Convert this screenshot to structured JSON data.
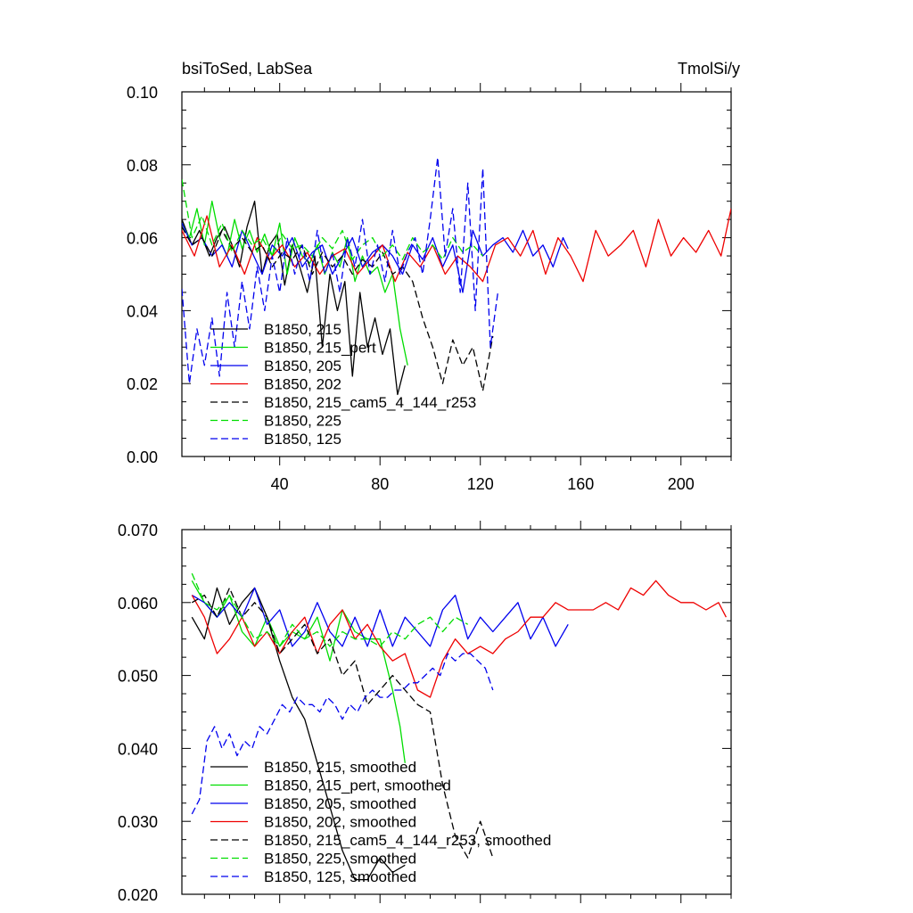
{
  "chart_data": [
    {
      "type": "line",
      "title_left": "bsiToSed, LabSea",
      "title_right": "TmolSi/y",
      "xlim": [
        1,
        220
      ],
      "ylim": [
        0.0,
        0.1
      ],
      "xticks": [
        40,
        80,
        120,
        160,
        200
      ],
      "xtick_labels": [
        "40",
        "80",
        "120",
        "160",
        "200"
      ],
      "yticks": [
        0.0,
        0.02,
        0.04,
        0.06,
        0.08,
        0.1
      ],
      "ytick_labels": [
        "0.00",
        "0.02",
        "0.04",
        "0.06",
        "0.08",
        "0.10"
      ],
      "series": [
        {
          "name": "B1850, 215",
          "color": "#000000",
          "dash": "solid",
          "x": [
            1,
            5,
            8,
            12,
            15,
            18,
            21,
            24,
            27,
            30,
            33,
            36,
            39,
            42,
            45,
            48,
            51,
            54,
            57,
            60,
            63,
            66,
            69,
            72,
            75,
            78,
            81,
            84,
            87,
            90
          ],
          "values": [
            0.065,
            0.058,
            0.062,
            0.055,
            0.06,
            0.063,
            0.058,
            0.052,
            0.063,
            0.07,
            0.05,
            0.058,
            0.061,
            0.047,
            0.058,
            0.052,
            0.045,
            0.055,
            0.03,
            0.05,
            0.04,
            0.048,
            0.022,
            0.045,
            0.03,
            0.038,
            0.028,
            0.035,
            0.017,
            0.025
          ]
        },
        {
          "name": "B1850, 215_pert",
          "color": "#00dd00",
          "dash": "solid",
          "x": [
            1,
            4,
            7,
            10,
            13,
            16,
            19,
            22,
            25,
            28,
            31,
            34,
            37,
            40,
            43,
            46,
            49,
            52,
            55,
            58,
            61,
            64,
            67,
            70,
            73,
            76,
            79,
            82,
            85,
            88,
            91
          ],
          "values": [
            0.064,
            0.06,
            0.068,
            0.058,
            0.07,
            0.06,
            0.055,
            0.065,
            0.057,
            0.062,
            0.056,
            0.061,
            0.055,
            0.064,
            0.05,
            0.06,
            0.055,
            0.053,
            0.058,
            0.05,
            0.056,
            0.052,
            0.06,
            0.048,
            0.055,
            0.05,
            0.052,
            0.045,
            0.05,
            0.035,
            0.025
          ]
        },
        {
          "name": "B1850, 205",
          "color": "#0000ee",
          "dash": "solid",
          "x": [
            1,
            5,
            9,
            13,
            17,
            21,
            25,
            29,
            33,
            37,
            41,
            45,
            49,
            53,
            57,
            61,
            65,
            69,
            73,
            77,
            81,
            85,
            89,
            93,
            97,
            101,
            105,
            109,
            113,
            117,
            121,
            125,
            129,
            133,
            137,
            141,
            145,
            149,
            153,
            155
          ],
          "values": [
            0.064,
            0.058,
            0.06,
            0.055,
            0.058,
            0.052,
            0.062,
            0.056,
            0.05,
            0.058,
            0.055,
            0.06,
            0.052,
            0.056,
            0.058,
            0.05,
            0.055,
            0.06,
            0.052,
            0.056,
            0.058,
            0.055,
            0.05,
            0.058,
            0.054,
            0.06,
            0.052,
            0.058,
            0.045,
            0.062,
            0.055,
            0.058,
            0.06,
            0.056,
            0.062,
            0.055,
            0.058,
            0.052,
            0.06,
            0.057
          ]
        },
        {
          "name": "B1850, 202",
          "color": "#ee0000",
          "dash": "solid",
          "x": [
            1,
            6,
            11,
            16,
            21,
            26,
            31,
            36,
            41,
            46,
            51,
            56,
            61,
            66,
            71,
            76,
            81,
            86,
            91,
            96,
            101,
            106,
            111,
            116,
            121,
            126,
            131,
            136,
            141,
            146,
            151,
            156,
            161,
            166,
            171,
            176,
            181,
            186,
            191,
            196,
            201,
            206,
            211,
            216,
            220
          ],
          "values": [
            0.062,
            0.055,
            0.066,
            0.052,
            0.058,
            0.05,
            0.06,
            0.054,
            0.058,
            0.052,
            0.056,
            0.05,
            0.055,
            0.057,
            0.05,
            0.054,
            0.058,
            0.048,
            0.056,
            0.052,
            0.058,
            0.05,
            0.055,
            0.052,
            0.048,
            0.058,
            0.06,
            0.055,
            0.062,
            0.05,
            0.06,
            0.055,
            0.048,
            0.062,
            0.055,
            0.058,
            0.062,
            0.052,
            0.065,
            0.055,
            0.06,
            0.056,
            0.062,
            0.055,
            0.068
          ]
        },
        {
          "name": "B1850, 215_cam5_4_144_r253",
          "color": "#000000",
          "dash": "dashed",
          "x": [
            1,
            5,
            9,
            13,
            17,
            21,
            25,
            29,
            33,
            37,
            41,
            45,
            49,
            53,
            57,
            61,
            65,
            69,
            73,
            77,
            81,
            85,
            89,
            93,
            97,
            101,
            105,
            109,
            113,
            117,
            121,
            125
          ],
          "values": [
            0.063,
            0.058,
            0.06,
            0.055,
            0.062,
            0.057,
            0.06,
            0.056,
            0.058,
            0.052,
            0.056,
            0.054,
            0.058,
            0.05,
            0.056,
            0.052,
            0.055,
            0.05,
            0.054,
            0.052,
            0.056,
            0.05,
            0.052,
            0.048,
            0.038,
            0.03,
            0.02,
            0.032,
            0.025,
            0.03,
            0.018,
            0.033
          ]
        },
        {
          "name": "B1850, 225",
          "color": "#00dd00",
          "dash": "dashed",
          "x": [
            1,
            5,
            9,
            13,
            17,
            21,
            25,
            29,
            33,
            37,
            41,
            45,
            49,
            53,
            57,
            61,
            65,
            69,
            73,
            77,
            81,
            85,
            89,
            93,
            97,
            101,
            105,
            109,
            113,
            117,
            121
          ],
          "values": [
            0.076,
            0.06,
            0.066,
            0.058,
            0.064,
            0.056,
            0.062,
            0.058,
            0.06,
            0.055,
            0.061,
            0.057,
            0.058,
            0.055,
            0.06,
            0.057,
            0.062,
            0.054,
            0.058,
            0.06,
            0.055,
            0.058,
            0.054,
            0.06,
            0.056,
            0.058,
            0.054,
            0.06,
            0.056,
            0.058,
            0.055
          ]
        },
        {
          "name": "B1850, 125",
          "color": "#0000ee",
          "dash": "dashed",
          "x": [
            1,
            4,
            7,
            10,
            13,
            16,
            19,
            22,
            25,
            28,
            31,
            34,
            37,
            40,
            43,
            46,
            49,
            52,
            55,
            58,
            61,
            64,
            67,
            70,
            73,
            76,
            79,
            82,
            85,
            88,
            91,
            94,
            97,
            100,
            103,
            106,
            109,
            112,
            115,
            118,
            121,
            124,
            127
          ],
          "values": [
            0.046,
            0.02,
            0.035,
            0.025,
            0.038,
            0.022,
            0.045,
            0.03,
            0.048,
            0.035,
            0.052,
            0.04,
            0.055,
            0.045,
            0.06,
            0.05,
            0.058,
            0.048,
            0.062,
            0.05,
            0.056,
            0.045,
            0.06,
            0.052,
            0.065,
            0.05,
            0.058,
            0.048,
            0.062,
            0.05,
            0.056,
            0.06,
            0.05,
            0.065,
            0.082,
            0.055,
            0.068,
            0.045,
            0.075,
            0.04,
            0.079,
            0.03,
            0.045
          ]
        }
      ],
      "legend": {
        "position": "lower-left"
      }
    },
    {
      "type": "line",
      "xlim": [
        1,
        220
      ],
      "ylim": [
        0.02,
        0.07
      ],
      "xticks": [
        40,
        80,
        120,
        160,
        200
      ],
      "yticks": [
        0.02,
        0.03,
        0.04,
        0.05,
        0.06,
        0.07
      ],
      "ytick_labels": [
        "0.020",
        "0.030",
        "0.040",
        "0.050",
        "0.060",
        "0.070"
      ],
      "series": [
        {
          "name": "B1850, 215, smoothed",
          "color": "#000000",
          "dash": "solid",
          "x": [
            5,
            10,
            15,
            20,
            25,
            30,
            35,
            40,
            45,
            50,
            55,
            60,
            65,
            70,
            75,
            80,
            85,
            90
          ],
          "values": [
            0.058,
            0.055,
            0.062,
            0.057,
            0.06,
            0.062,
            0.058,
            0.052,
            0.047,
            0.044,
            0.038,
            0.032,
            0.026,
            0.022,
            0.022,
            0.025,
            0.023,
            0.024
          ]
        },
        {
          "name": "B1850, 215_pert, smoothed",
          "color": "#00dd00",
          "dash": "solid",
          "x": [
            5,
            10,
            15,
            20,
            25,
            30,
            35,
            40,
            45,
            50,
            55,
            60,
            65,
            70,
            75,
            80,
            85,
            88,
            90
          ],
          "values": [
            0.063,
            0.06,
            0.058,
            0.061,
            0.056,
            0.054,
            0.058,
            0.054,
            0.056,
            0.055,
            0.058,
            0.052,
            0.059,
            0.056,
            0.055,
            0.055,
            0.048,
            0.043,
            0.038
          ]
        },
        {
          "name": "B1850, 205, smoothed",
          "color": "#0000ee",
          "dash": "solid",
          "x": [
            5,
            10,
            15,
            20,
            25,
            30,
            35,
            40,
            45,
            50,
            55,
            60,
            65,
            70,
            75,
            80,
            85,
            90,
            95,
            100,
            105,
            110,
            115,
            120,
            125,
            130,
            135,
            140,
            145,
            150,
            155
          ],
          "values": [
            0.061,
            0.06,
            0.058,
            0.06,
            0.058,
            0.062,
            0.057,
            0.059,
            0.054,
            0.056,
            0.06,
            0.056,
            0.054,
            0.058,
            0.054,
            0.059,
            0.054,
            0.058,
            0.056,
            0.054,
            0.059,
            0.061,
            0.055,
            0.058,
            0.056,
            0.058,
            0.06,
            0.055,
            0.058,
            0.054,
            0.057
          ]
        },
        {
          "name": "B1850, 202, smoothed",
          "color": "#ee0000",
          "dash": "solid",
          "x": [
            5,
            10,
            15,
            20,
            25,
            30,
            35,
            40,
            45,
            50,
            55,
            60,
            65,
            70,
            75,
            80,
            85,
            90,
            95,
            100,
            105,
            110,
            115,
            120,
            125,
            130,
            135,
            140,
            145,
            150,
            155,
            160,
            165,
            170,
            175,
            180,
            185,
            190,
            195,
            200,
            205,
            210,
            215,
            218
          ],
          "values": [
            0.061,
            0.058,
            0.053,
            0.055,
            0.058,
            0.054,
            0.056,
            0.053,
            0.056,
            0.058,
            0.053,
            0.057,
            0.059,
            0.055,
            0.057,
            0.054,
            0.052,
            0.053,
            0.048,
            0.047,
            0.052,
            0.055,
            0.053,
            0.054,
            0.053,
            0.055,
            0.056,
            0.058,
            0.058,
            0.06,
            0.059,
            0.059,
            0.059,
            0.06,
            0.059,
            0.062,
            0.061,
            0.063,
            0.061,
            0.06,
            0.06,
            0.059,
            0.06,
            0.058
          ]
        },
        {
          "name": "B1850, 215_cam5_4_144_r253, smoothed",
          "color": "#000000",
          "dash": "dashed",
          "x": [
            5,
            10,
            15,
            20,
            25,
            30,
            35,
            40,
            45,
            50,
            55,
            60,
            65,
            70,
            75,
            80,
            85,
            90,
            95,
            100,
            105,
            110,
            115,
            120,
            125
          ],
          "values": [
            0.06,
            0.061,
            0.058,
            0.062,
            0.058,
            0.06,
            0.058,
            0.053,
            0.055,
            0.057,
            0.053,
            0.055,
            0.05,
            0.052,
            0.046,
            0.048,
            0.05,
            0.048,
            0.046,
            0.045,
            0.035,
            0.028,
            0.025,
            0.03,
            0.025
          ]
        },
        {
          "name": "B1850, 225, smoothed",
          "color": "#00dd00",
          "dash": "dashed",
          "x": [
            5,
            10,
            15,
            20,
            25,
            30,
            35,
            40,
            45,
            50,
            55,
            60,
            65,
            70,
            75,
            80,
            85,
            90,
            95,
            100,
            105,
            110,
            115
          ],
          "values": [
            0.064,
            0.06,
            0.059,
            0.061,
            0.058,
            0.055,
            0.056,
            0.054,
            0.057,
            0.055,
            0.056,
            0.054,
            0.056,
            0.055,
            0.055,
            0.054,
            0.056,
            0.055,
            0.057,
            0.058,
            0.056,
            0.058,
            0.057
          ]
        },
        {
          "name": "B1850, 125, smoothed",
          "color": "#0000ee",
          "dash": "dashed",
          "x": [
            5,
            8,
            11,
            14,
            17,
            20,
            23,
            26,
            29,
            32,
            35,
            38,
            41,
            44,
            47,
            50,
            53,
            56,
            59,
            62,
            65,
            68,
            71,
            74,
            77,
            80,
            83,
            86,
            89,
            92,
            95,
            98,
            101,
            104,
            107,
            110,
            113,
            116,
            119,
            122,
            125
          ],
          "values": [
            0.031,
            0.033,
            0.041,
            0.043,
            0.04,
            0.042,
            0.039,
            0.041,
            0.04,
            0.043,
            0.042,
            0.044,
            0.046,
            0.045,
            0.047,
            0.046,
            0.046,
            0.045,
            0.047,
            0.046,
            0.044,
            0.046,
            0.045,
            0.047,
            0.048,
            0.047,
            0.047,
            0.048,
            0.048,
            0.049,
            0.049,
            0.05,
            0.051,
            0.05,
            0.053,
            0.052,
            0.053,
            0.053,
            0.052,
            0.051,
            0.048
          ]
        }
      ],
      "legend": {
        "position": "lower-left"
      }
    }
  ]
}
